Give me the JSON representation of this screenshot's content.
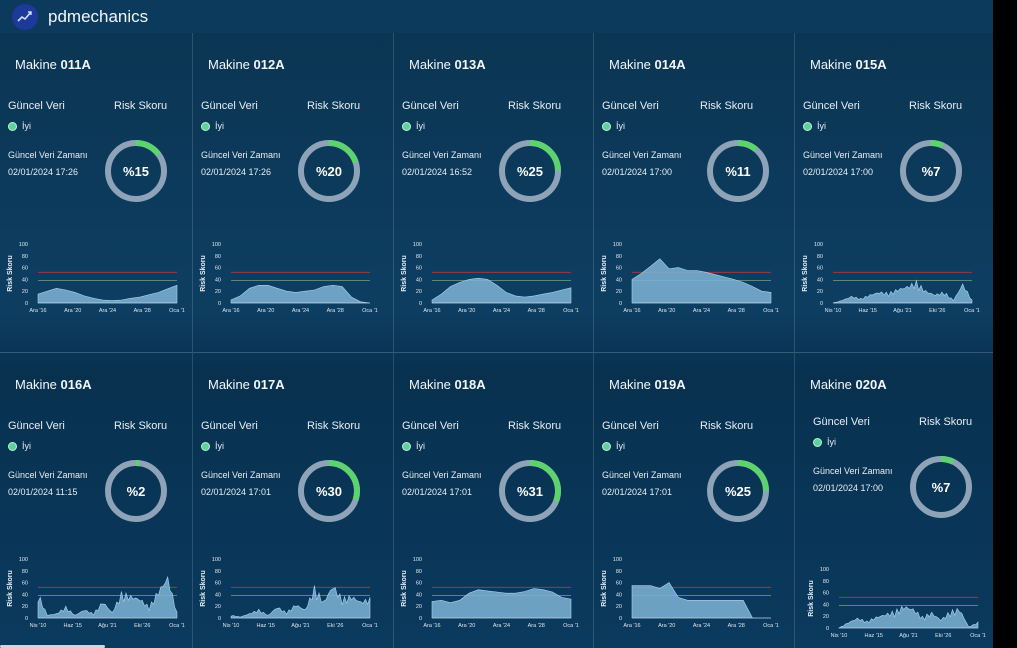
{
  "app": {
    "brand": "pdmechanics"
  },
  "labels": {
    "machine_prefix": "Makine",
    "current_data": "Güncel Veri",
    "risk_score": "Risk Skoru",
    "status": "İyi",
    "data_time": "Güncel Veri Zamanı",
    "y_axis": "Risk Skoru",
    "y_ticks": [
      "100",
      "80",
      "60",
      "40",
      "20",
      "0"
    ]
  },
  "colors": {
    "ok": "#5cd39b",
    "donut_track": "#8fa3b8",
    "donut_fill": "#5cd36e",
    "area": "#7fb4d6",
    "threshold": "#b23a3a",
    "warning": "#6f8f7a"
  },
  "machines": [
    {
      "id": "011A",
      "time": "02/01/2024 17:26",
      "risk": "%15",
      "risk_value": 15,
      "xticks": [
        "Ara '16",
        "Ara '20",
        "Ara '24",
        "Ara '28",
        "Oca '1"
      ],
      "series": [
        0.15,
        0.2,
        0.25,
        0.22,
        0.18,
        0.12,
        0.08,
        0.05,
        0.04,
        0.05,
        0.08,
        0.1,
        0.14,
        0.18,
        0.24,
        0.3
      ],
      "style": "smooth"
    },
    {
      "id": "012A",
      "time": "02/01/2024 17:26",
      "risk": "%20",
      "risk_value": 20,
      "xticks": [
        "Ara '16",
        "Ara '20",
        "Ara '24",
        "Ara '28",
        "Oca '1"
      ],
      "series": [
        0.05,
        0.12,
        0.25,
        0.3,
        0.3,
        0.25,
        0.2,
        0.18,
        0.2,
        0.22,
        0.28,
        0.3,
        0.28,
        0.1,
        0.02,
        0.0
      ],
      "style": "smooth"
    },
    {
      "id": "013A",
      "time": "02/01/2024 16:52",
      "risk": "%25",
      "risk_value": 25,
      "xticks": [
        "Ara '16",
        "Ara '20",
        "Ara '24",
        "Ara '28",
        "Oca '1"
      ],
      "series": [
        0.05,
        0.15,
        0.28,
        0.35,
        0.4,
        0.42,
        0.4,
        0.3,
        0.18,
        0.12,
        0.1,
        0.12,
        0.15,
        0.18,
        0.22,
        0.26
      ],
      "style": "smooth"
    },
    {
      "id": "014A",
      "time": "02/01/2024 17:00",
      "risk": "%11",
      "risk_value": 11,
      "xticks": [
        "Ara '16",
        "Ara '20",
        "Ara '24",
        "Ara '28",
        "Oca '1"
      ],
      "series": [
        0.4,
        0.5,
        0.62,
        0.75,
        0.58,
        0.6,
        0.55,
        0.55,
        0.52,
        0.48,
        0.44,
        0.4,
        0.35,
        0.28,
        0.2,
        0.18
      ],
      "style": "smooth"
    },
    {
      "id": "015A",
      "time": "02/01/2024 17:00",
      "risk": "%7",
      "risk_value": 7,
      "xticks": [
        "Nis '10",
        "Haz '15",
        "Ağu '21",
        "Eki '26",
        "Oca '1"
      ],
      "series": [
        0.0,
        0.05,
        0.12,
        0.08,
        0.15,
        0.2,
        0.18,
        0.25,
        0.3,
        0.38,
        0.22,
        0.15,
        0.2,
        0.05,
        0.35,
        0.05
      ],
      "style": "spiky"
    },
    {
      "id": "016A",
      "time": "02/01/2024 11:15",
      "risk": "%2",
      "risk_value": 2,
      "xticks": [
        "Nis '10",
        "Haz '15",
        "Ağu '21",
        "Eki '26",
        "Oca '1"
      ],
      "series": [
        0.45,
        0.05,
        0.08,
        0.2,
        0.05,
        0.15,
        0.08,
        0.3,
        0.1,
        0.45,
        0.4,
        0.35,
        0.2,
        0.5,
        0.75,
        0.1
      ],
      "style": "spiky"
    },
    {
      "id": "017A",
      "time": "02/01/2024 17:01",
      "risk": "%30",
      "risk_value": 30,
      "xticks": [
        "Nis '10",
        "Haz '15",
        "Ağu '21",
        "Eki '26",
        "Oca '1"
      ],
      "series": [
        0.05,
        0.02,
        0.08,
        0.15,
        0.05,
        0.2,
        0.1,
        0.25,
        0.15,
        0.55,
        0.3,
        0.6,
        0.35,
        0.4,
        0.3,
        0.35
      ],
      "style": "spiky"
    },
    {
      "id": "018A",
      "time": "02/01/2024 17:01",
      "risk": "%31",
      "risk_value": 31,
      "xticks": [
        "Ara '16",
        "Ara '20",
        "Ara '24",
        "Ara '28",
        "Oca '1"
      ],
      "series": [
        0.28,
        0.3,
        0.26,
        0.3,
        0.42,
        0.48,
        0.46,
        0.44,
        0.42,
        0.42,
        0.45,
        0.5,
        0.48,
        0.44,
        0.35,
        0.32
      ],
      "style": "smooth"
    },
    {
      "id": "019A",
      "time": "02/01/2024 17:01",
      "risk": "%25",
      "risk_value": 25,
      "xticks": [
        "Ara '16",
        "Ara '20",
        "Ara '24",
        "Ara '28",
        "Oca '1"
      ],
      "series": [
        0.55,
        0.55,
        0.55,
        0.5,
        0.6,
        0.35,
        0.3,
        0.3,
        0.3,
        0.3,
        0.3,
        0.3,
        0.3,
        0.0,
        0.0,
        0.0
      ],
      "style": "step"
    },
    {
      "id": "020A",
      "time": "02/01/2024 17:00",
      "risk": "%7",
      "risk_value": 7,
      "xticks": [
        "Nis '10",
        "Haz '15",
        "Ağu '21",
        "Eki '26",
        "Oca '1"
      ],
      "series": [
        0.0,
        0.1,
        0.18,
        0.12,
        0.2,
        0.25,
        0.3,
        0.4,
        0.35,
        0.2,
        0.28,
        0.15,
        0.3,
        0.35,
        0.02,
        0.1
      ],
      "style": "spiky"
    }
  ]
}
